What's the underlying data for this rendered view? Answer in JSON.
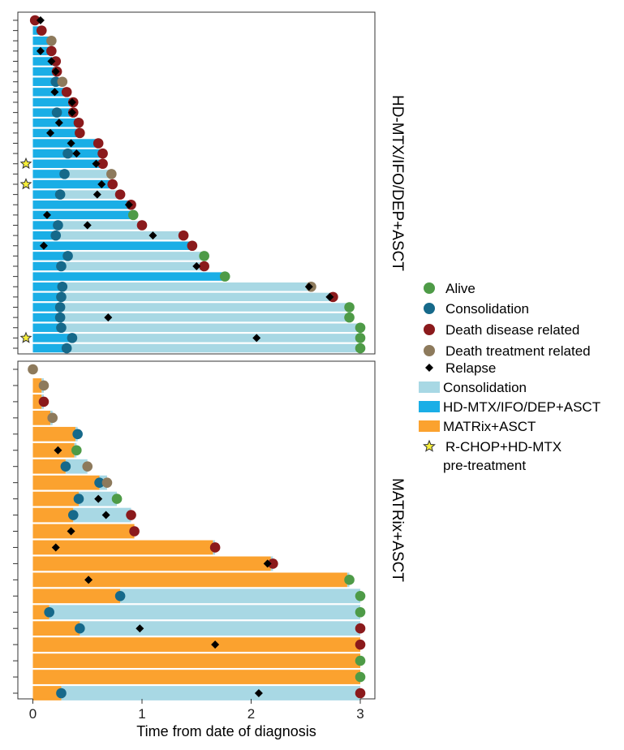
{
  "chart_data": {
    "type": "swimmer",
    "xlabel": "Time from date of diagnosis",
    "xlim": [
      -0.1,
      3.15
    ],
    "x_ticks": [
      0,
      1,
      2,
      3
    ],
    "colors": {
      "HD-MTX/IFO/DEP+ASCT": "#1aaee6",
      "MATRix+ASCT": "#fba22f",
      "Consolidation": "#a8d8e4",
      "Alive": "#4e9b47",
      "Consolidation_marker": "#16698a",
      "Death disease related": "#8b1a1c",
      "Death treatment related": "#8d7a5c",
      "Relapse": "#000000",
      "R-CHOP+HD-MTX pre-treatment": "#f7ef3a"
    },
    "legend": [
      {
        "type": "circle",
        "color": "#4e9b47",
        "label": "Alive"
      },
      {
        "type": "circle",
        "color": "#16698a",
        "label": "Consolidation"
      },
      {
        "type": "circle",
        "color": "#8b1a1c",
        "label": "Death disease related"
      },
      {
        "type": "circle",
        "color": "#8d7a5c",
        "label": "Death treatment related"
      },
      {
        "type": "diamond",
        "color": "#000000",
        "label": "Relapse"
      },
      {
        "type": "bar",
        "color": "#a8d8e4",
        "label": "Consolidation"
      },
      {
        "type": "bar",
        "color": "#1aaee6",
        "label": "HD-MTX/IFO/DEP+ASCT"
      },
      {
        "type": "bar",
        "color": "#fba22f",
        "label": "MATRix+ASCT"
      },
      {
        "type": "star",
        "color": "#f7ef3a",
        "label": "R-CHOP+HD-MTX",
        "label2": "pre-treatment"
      }
    ],
    "panels": [
      {
        "label": "HD-MTX/IFO/DEP+ASCT",
        "treatment": "HD-MTX/IFO/DEP+ASCT",
        "patients": [
          {
            "treat_end": 0.0,
            "end": 0.02,
            "outcome": "Death disease related",
            "relapse": 0.07
          },
          {
            "treat_end": 0.06,
            "end": 0.08,
            "outcome": "Death disease related"
          },
          {
            "treat_end": 0.15,
            "end": 0.17,
            "outcome": "Death treatment related"
          },
          {
            "treat_end": 0.15,
            "end": 0.17,
            "outcome": "Death disease related",
            "relapse": 0.07
          },
          {
            "treat_end": 0.19,
            "end": 0.21,
            "outcome": "Death disease related",
            "relapse": 0.17
          },
          {
            "treat_end": 0.2,
            "end": 0.22,
            "outcome": "Death disease related",
            "relapse": 0.21
          },
          {
            "treat_end": 0.25,
            "end": 0.27,
            "outcome": "Death treatment related",
            "consolidation": 0.21
          },
          {
            "treat_end": 0.29,
            "end": 0.31,
            "outcome": "Death disease related",
            "relapse": 0.2
          },
          {
            "treat_end": 0.35,
            "end": 0.37,
            "outcome": "Death disease related",
            "relapse": 0.36
          },
          {
            "treat_end": 0.35,
            "end": 0.37,
            "outcome": "Death disease related",
            "consolidation": 0.22,
            "relapse": 0.36
          },
          {
            "treat_end": 0.4,
            "end": 0.42,
            "outcome": "Death disease related",
            "relapse": 0.24
          },
          {
            "treat_end": 0.41,
            "end": 0.43,
            "outcome": "Death disease related",
            "relapse": 0.16
          },
          {
            "treat_end": 0.58,
            "end": 0.6,
            "outcome": "Death disease related",
            "relapse": 0.35
          },
          {
            "treat_end": 0.62,
            "end": 0.64,
            "outcome": "Death disease related",
            "consolidation": 0.32,
            "relapse": 0.4
          },
          {
            "treat_end": 0.65,
            "end": 0.64,
            "outcome": "Death disease related",
            "relapse": 0.58,
            "star": true
          },
          {
            "treat_end": 0.3,
            "end": 0.72,
            "outcome": "Death treatment related",
            "consolidation": 0.29
          },
          {
            "treat_end": 0.7,
            "end": 0.73,
            "outcome": "Death disease related",
            "relapse": 0.63,
            "star": true
          },
          {
            "treat_end": 0.25,
            "end": 0.8,
            "outcome": "Death disease related",
            "consolidation": 0.25,
            "relapse": 0.59
          },
          {
            "treat_end": 0.88,
            "end": 0.9,
            "outcome": "Death disease related",
            "relapse": 0.88
          },
          {
            "treat_end": 0.9,
            "end": 0.92,
            "outcome": "Alive",
            "relapse": 0.13
          },
          {
            "treat_end": 0.23,
            "end": 1.0,
            "outcome": "Death disease related",
            "consolidation": 0.23,
            "relapse": 0.5
          },
          {
            "treat_end": 0.21,
            "end": 1.38,
            "outcome": "Death disease related",
            "consolidation": 0.21,
            "relapse": 1.1
          },
          {
            "treat_end": 1.44,
            "end": 1.46,
            "outcome": "Death disease related",
            "relapse": 0.1
          },
          {
            "treat_end": 0.32,
            "end": 1.57,
            "outcome": "Alive",
            "consolidation": 0.32
          },
          {
            "treat_end": 0.26,
            "end": 1.57,
            "outcome": "Death disease related",
            "consolidation": 0.26,
            "relapse": 1.5
          },
          {
            "treat_end": 1.74,
            "end": 1.76,
            "outcome": "Alive"
          },
          {
            "treat_end": 0.27,
            "end": 2.55,
            "outcome": "Death treatment related",
            "consolidation": 0.27,
            "relapse": 2.53
          },
          {
            "treat_end": 0.26,
            "end": 2.75,
            "outcome": "Death disease related",
            "consolidation": 0.26,
            "relapse": 2.72
          },
          {
            "treat_end": 0.25,
            "end": 2.9,
            "outcome": "Alive",
            "consolidation": 0.25
          },
          {
            "treat_end": 0.25,
            "end": 2.9,
            "outcome": "Alive",
            "consolidation": 0.25,
            "relapse": 0.69
          },
          {
            "treat_end": 0.26,
            "end": 3.0,
            "outcome": "Alive",
            "consolidation": 0.26
          },
          {
            "treat_end": 0.36,
            "end": 3.0,
            "outcome": "Alive",
            "consolidation": 0.36,
            "relapse": 2.05,
            "star": true
          },
          {
            "treat_end": 0.31,
            "end": 3.0,
            "outcome": "Alive",
            "consolidation": 0.31
          }
        ]
      },
      {
        "label": "MATRix+ASCT",
        "treatment": "MATRix+ASCT",
        "patients": [
          {
            "treat_end": 0.0,
            "end": 0.0,
            "outcome": "Death treatment related"
          },
          {
            "treat_end": 0.08,
            "end": 0.1,
            "outcome": "Death treatment related"
          },
          {
            "treat_end": 0.08,
            "end": 0.1,
            "outcome": "Death disease related"
          },
          {
            "treat_end": 0.16,
            "end": 0.18,
            "outcome": "Death treatment related"
          },
          {
            "treat_end": 0.39,
            "end": 0.41,
            "outcome": "Consolidation"
          },
          {
            "treat_end": 0.38,
            "end": 0.4,
            "outcome": "Alive",
            "relapse": 0.23
          },
          {
            "treat_end": 0.3,
            "end": 0.5,
            "outcome": "Death treatment related",
            "consolidation": 0.3
          },
          {
            "treat_end": 0.61,
            "end": 0.68,
            "outcome": "Death treatment related",
            "consolidation": 0.61
          },
          {
            "treat_end": 0.42,
            "end": 0.77,
            "outcome": "Alive",
            "consolidation": 0.42,
            "relapse": 0.6
          },
          {
            "treat_end": 0.37,
            "end": 0.9,
            "outcome": "Death disease related",
            "consolidation": 0.37,
            "relapse": 0.67
          },
          {
            "treat_end": 0.93,
            "end": 0.93,
            "outcome": "Death disease related",
            "relapse": 0.35
          },
          {
            "treat_end": 1.65,
            "end": 1.67,
            "outcome": "Death disease related",
            "relapse": 0.21
          },
          {
            "treat_end": 2.18,
            "end": 2.2,
            "outcome": "Death disease related",
            "relapse": 2.15
          },
          {
            "treat_end": 2.88,
            "end": 2.9,
            "outcome": "Alive",
            "relapse": 0.51
          },
          {
            "treat_end": 0.8,
            "end": 3.0,
            "outcome": "Alive",
            "consolidation": 0.8
          },
          {
            "treat_end": 0.15,
            "end": 3.0,
            "outcome": "Alive",
            "consolidation": 0.15
          },
          {
            "treat_end": 0.43,
            "end": 3.0,
            "outcome": "Death disease related",
            "consolidation": 0.43,
            "relapse": 0.98
          },
          {
            "treat_end": 3.0,
            "end": 3.0,
            "outcome": "Death disease related",
            "relapse": 1.67
          },
          {
            "treat_end": 3.0,
            "end": 3.0,
            "outcome": "Alive"
          },
          {
            "treat_end": 3.0,
            "end": 3.0,
            "outcome": "Alive"
          },
          {
            "treat_end": 0.26,
            "end": 3.0,
            "outcome": "Death disease related",
            "consolidation": 0.26,
            "relapse": 2.07
          }
        ]
      }
    ]
  }
}
